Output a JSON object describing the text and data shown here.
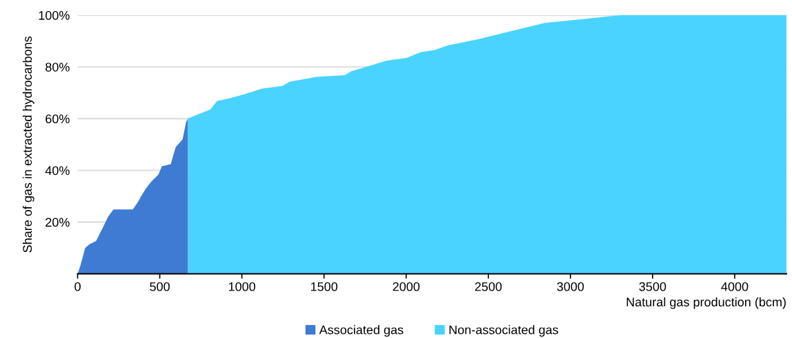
{
  "chart_data": {
    "type": "area",
    "xlabel": "Natural gas production (bcm)",
    "ylabel": "Share of gas in extracted hydrocarbons",
    "series": [
      {
        "name": "Associated gas",
        "color": "#3f7ad3",
        "x": [
          0,
          17,
          29,
          46,
          71,
          113,
          134,
          155,
          185,
          218,
          336,
          366,
          387,
          416,
          450,
          492,
          513,
          567,
          597,
          639,
          660,
          672
        ],
        "values": [
          0,
          3.2,
          6,
          10,
          11.4,
          12.7,
          15.4,
          18,
          22,
          24.9,
          24.9,
          27.6,
          30,
          33,
          35.7,
          38.4,
          41.6,
          42.4,
          49,
          52,
          58.6,
          60
        ]
      },
      {
        "name": "Non-associated gas",
        "color": "#4ad3ff",
        "x": [
          672,
          723,
          807,
          849,
          933,
          1017,
          1122,
          1248,
          1290,
          1458,
          1626,
          1668,
          1773,
          1878,
          2004,
          2088,
          2172,
          2256,
          2424,
          2634,
          2845,
          3097,
          3223,
          3307,
          4315
        ],
        "values": [
          60,
          61.4,
          63.5,
          66.8,
          68,
          69.5,
          71.6,
          72.7,
          74.3,
          76.2,
          76.8,
          78.4,
          80.3,
          82.4,
          83.5,
          85.7,
          86.5,
          88.4,
          90.5,
          93.8,
          97,
          98.6,
          99.5,
          100,
          100
        ]
      }
    ],
    "xlim": [
      0,
      4315
    ],
    "xticks": [
      0,
      500,
      1000,
      1500,
      2000,
      2500,
      3000,
      3500,
      4000
    ],
    "ylim": [
      0,
      100
    ],
    "yticks": [
      {
        "value": 20,
        "label": "20%"
      },
      {
        "value": 40,
        "label": "40%"
      },
      {
        "value": 60,
        "label": "60%"
      },
      {
        "value": 80,
        "label": "80%"
      },
      {
        "value": 100,
        "label": "100%"
      }
    ],
    "grid": "y",
    "legend": "bottom"
  }
}
